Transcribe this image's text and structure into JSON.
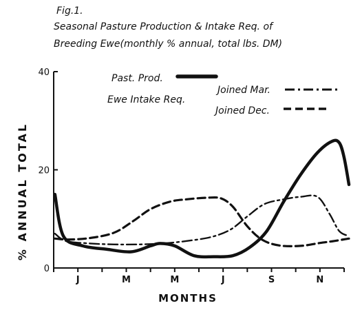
{
  "chart_data": {
    "type": "line",
    "figure_label": "Fig.1.",
    "title": "Seasonal Pasture Production & Intake Req. of",
    "subtitle": "Breeding Ewe(monthly % annual, total lbs. DM)",
    "xlabel": "MONTHS",
    "ylabel": "% ANNUAL  TOTAL",
    "ylim": [
      0,
      40
    ],
    "yticks": [
      0,
      20,
      40
    ],
    "xlim": [
      0,
      12
    ],
    "xtick_labels": [
      {
        "label": "J",
        "x": 1
      },
      {
        "label": "M",
        "x": 3
      },
      {
        "label": "M",
        "x": 5
      },
      {
        "label": "J",
        "x": 7
      },
      {
        "label": "S",
        "x": 9
      },
      {
        "label": "N",
        "x": 11
      }
    ],
    "legend_title": "Ewe Intake Req.",
    "series": [
      {
        "name": "Past. Prod.",
        "style": "solid",
        "points": [
          [
            0.05,
            15
          ],
          [
            0.4,
            6.5
          ],
          [
            1.2,
            4.5
          ],
          [
            2.2,
            3.8
          ],
          [
            3.2,
            3.3
          ],
          [
            4.0,
            4.5
          ],
          [
            4.4,
            5
          ],
          [
            5.0,
            4.5
          ],
          [
            5.8,
            2.5
          ],
          [
            6.6,
            2.3
          ],
          [
            7.4,
            2.5
          ],
          [
            8.1,
            4.2
          ],
          [
            8.8,
            7.5
          ],
          [
            9.5,
            13.5
          ],
          [
            10.2,
            19
          ],
          [
            10.9,
            23.5
          ],
          [
            11.5,
            25.8
          ],
          [
            11.8,
            25.5
          ],
          [
            12.0,
            22.5
          ],
          [
            12.2,
            17
          ]
        ]
      },
      {
        "name": "Joined Mar.",
        "style": "dashdot",
        "points": [
          [
            0.05,
            7
          ],
          [
            0.5,
            5.5
          ],
          [
            1.5,
            5
          ],
          [
            2.5,
            4.8
          ],
          [
            3.5,
            4.8
          ],
          [
            4.5,
            5
          ],
          [
            5.5,
            5.5
          ],
          [
            6.5,
            6.3
          ],
          [
            7.3,
            7.8
          ],
          [
            8.0,
            10.5
          ],
          [
            8.7,
            13
          ],
          [
            9.5,
            14
          ],
          [
            10.2,
            14.5
          ],
          [
            10.9,
            14.5
          ],
          [
            11.4,
            11
          ],
          [
            11.8,
            7.5
          ],
          [
            12.2,
            6.5
          ]
        ]
      },
      {
        "name": "Joined Dec.",
        "style": "dashed",
        "points": [
          [
            0.05,
            6
          ],
          [
            0.6,
            5.8
          ],
          [
            1.5,
            6.1
          ],
          [
            2.5,
            7.2
          ],
          [
            3.3,
            9.6
          ],
          [
            4.0,
            12
          ],
          [
            4.8,
            13.5
          ],
          [
            5.5,
            14
          ],
          [
            6.3,
            14.3
          ],
          [
            6.9,
            14.2
          ],
          [
            7.4,
            12.5
          ],
          [
            8.0,
            8.5
          ],
          [
            8.6,
            5.8
          ],
          [
            9.3,
            4.6
          ],
          [
            10.2,
            4.5
          ],
          [
            11.0,
            5.1
          ],
          [
            11.6,
            5.5
          ],
          [
            12.2,
            6
          ]
        ]
      }
    ]
  }
}
